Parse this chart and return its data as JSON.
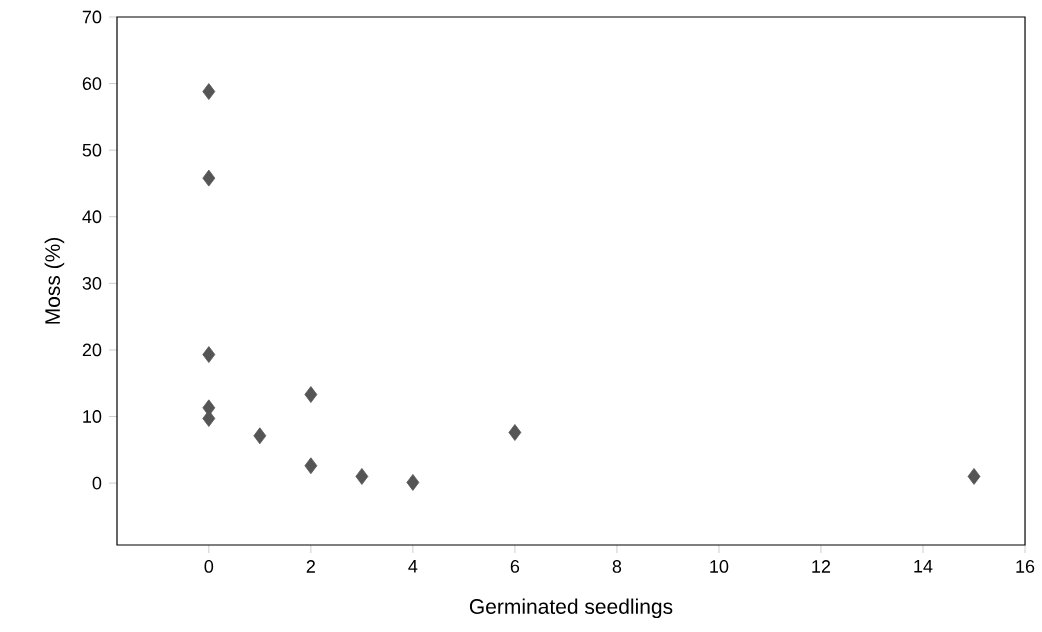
{
  "chart_data": {
    "type": "scatter",
    "xlabel": "Germinated seedlings",
    "ylabel": "Moss (%)",
    "x": [
      0,
      0,
      0,
      0,
      0,
      1,
      2,
      2,
      3,
      4,
      6,
      15
    ],
    "values": [
      58.8,
      45.8,
      19.3,
      11.3,
      9.7,
      7.1,
      13.3,
      2.6,
      1.0,
      0.1,
      7.6,
      1.0
    ],
    "color": "#555555",
    "marker": "diamond",
    "xlim": [
      -1.8,
      16
    ],
    "xticks": [
      0,
      2,
      4,
      6,
      8,
      10,
      12,
      14,
      16
    ],
    "ylim": [
      -9.3,
      70
    ],
    "yticks": [
      0,
      10,
      20,
      30,
      40,
      50,
      60,
      70
    ]
  }
}
